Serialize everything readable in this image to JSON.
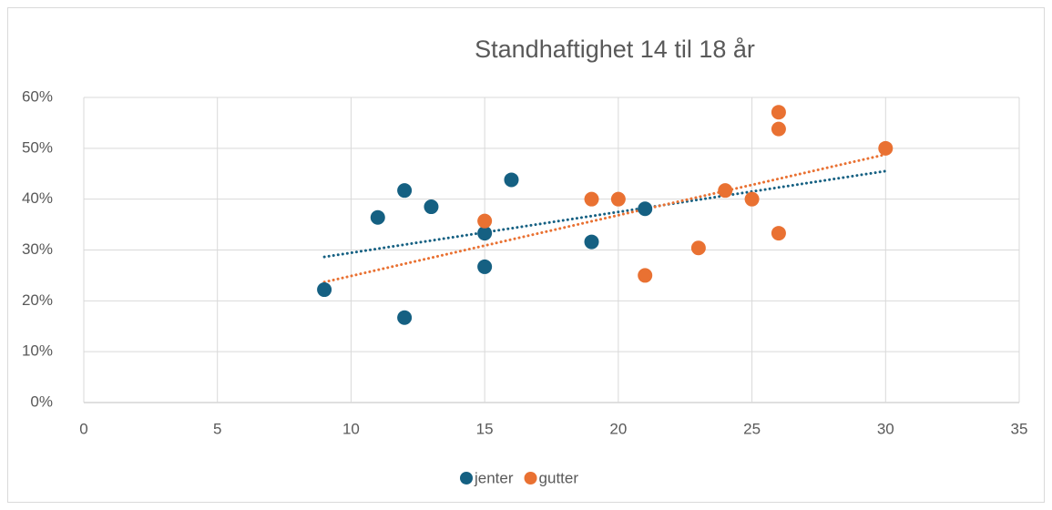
{
  "chart_data": {
    "type": "scatter",
    "title": "Standhaftighet 14 til 18 år",
    "series": [
      {
        "name": "jenter",
        "color": "#156082",
        "trendline": "linear",
        "x": [
          9,
          11,
          12,
          12,
          13,
          15,
          15,
          16,
          19,
          21
        ],
        "values": [
          22.2,
          36.4,
          41.7,
          16.7,
          38.5,
          33.3,
          26.7,
          43.8,
          31.6,
          38.1
        ]
      },
      {
        "name": "gutter",
        "color": "#e97132",
        "trendline": "linear",
        "x": [
          15,
          19,
          20,
          21,
          23,
          24,
          25,
          26,
          26,
          26,
          30
        ],
        "values": [
          35.7,
          40,
          40,
          25,
          30.4,
          41.7,
          40,
          57.1,
          53.8,
          33.3,
          50
        ]
      }
    ],
    "xlim": [
      0,
      35
    ],
    "xticks": [
      0,
      5,
      10,
      15,
      20,
      25,
      30,
      35
    ],
    "ylim": [
      0,
      60
    ],
    "yticks": [
      {
        "value": 0,
        "label": "0%"
      },
      {
        "value": 10,
        "label": "10%"
      },
      {
        "value": 20,
        "label": "20%"
      },
      {
        "value": 30,
        "label": "30%"
      },
      {
        "value": 40,
        "label": "40%"
      },
      {
        "value": 50,
        "label": "50%"
      },
      {
        "value": 60,
        "label": "60%"
      }
    ],
    "grid": true,
    "legend": "bottom"
  }
}
